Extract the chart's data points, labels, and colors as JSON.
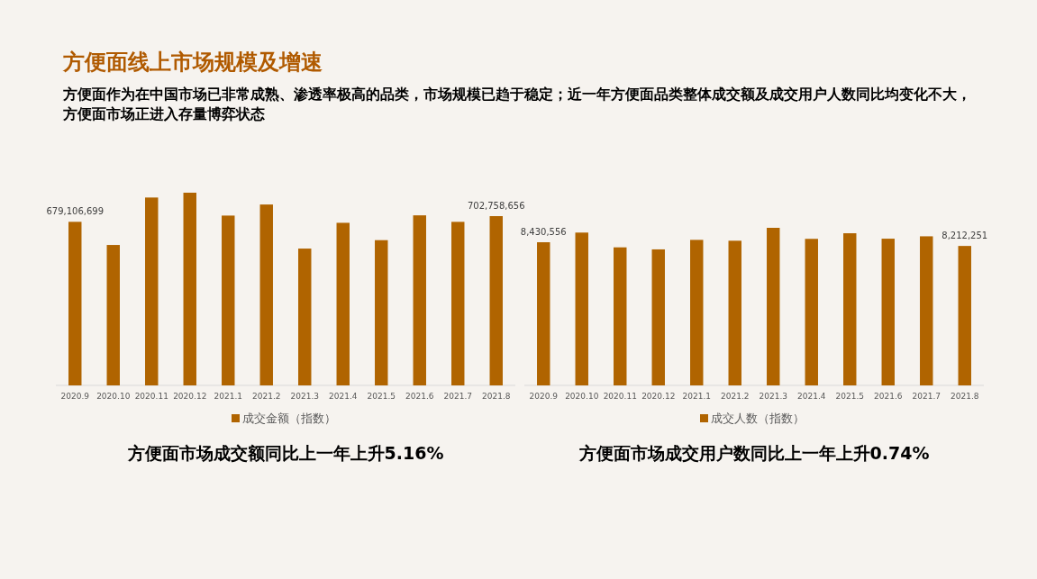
{
  "chart_data": [
    {
      "type": "bar",
      "title": "方便面线上市场规模及增速",
      "subtitle": "方便面作为在中国市场已非常成熟、渗透率极高的品类，市场规模已趋于稳定；近一年方便面品类整体成交额及成交用户人数同比均变化不大，方便面市场正进入存量博弈状态",
      "categories": [
        "2020.9",
        "2020.10",
        "2020.11",
        "2020.12",
        "2021.1",
        "2021.2",
        "2021.3",
        "2021.4",
        "2021.5",
        "2021.6",
        "2021.7",
        "2021.8"
      ],
      "series": [
        {
          "name": "成交金额（指数）",
          "color": "#b06400",
          "values": [
            679106699,
            583000000,
            780000000,
            800000000,
            705000000,
            751000000,
            568000000,
            675000000,
            603000000,
            706000000,
            679000000,
            702758656
          ],
          "value_labels": [
            "679,106,699",
            null,
            null,
            null,
            null,
            null,
            null,
            null,
            null,
            null,
            null,
            "702,758,656"
          ]
        }
      ],
      "legend": "bottom",
      "annotations": [
        "方便面市场成交额同比上一年上升5.16%"
      ]
    },
    {
      "type": "bar",
      "categories": [
        "2020.9",
        "2020.10",
        "2020.11",
        "2020.12",
        "2021.1",
        "2021.2",
        "2021.3",
        "2021.4",
        "2021.5",
        "2021.6",
        "2021.7",
        "2021.8"
      ],
      "series": [
        {
          "name": "成交人数（指数）",
          "color": "#b06400",
          "values": [
            8430556,
            9000000,
            8130000,
            8010000,
            8570000,
            8520000,
            9280000,
            8630000,
            8960000,
            8640000,
            8780000,
            8212251
          ],
          "value_labels": [
            "8,430,556",
            null,
            null,
            null,
            null,
            null,
            null,
            null,
            null,
            null,
            null,
            "8,212,251"
          ]
        }
      ],
      "legend": "bottom",
      "annotations": [
        "方便面市场成交用户数同比上一年上升0.74%"
      ]
    }
  ]
}
